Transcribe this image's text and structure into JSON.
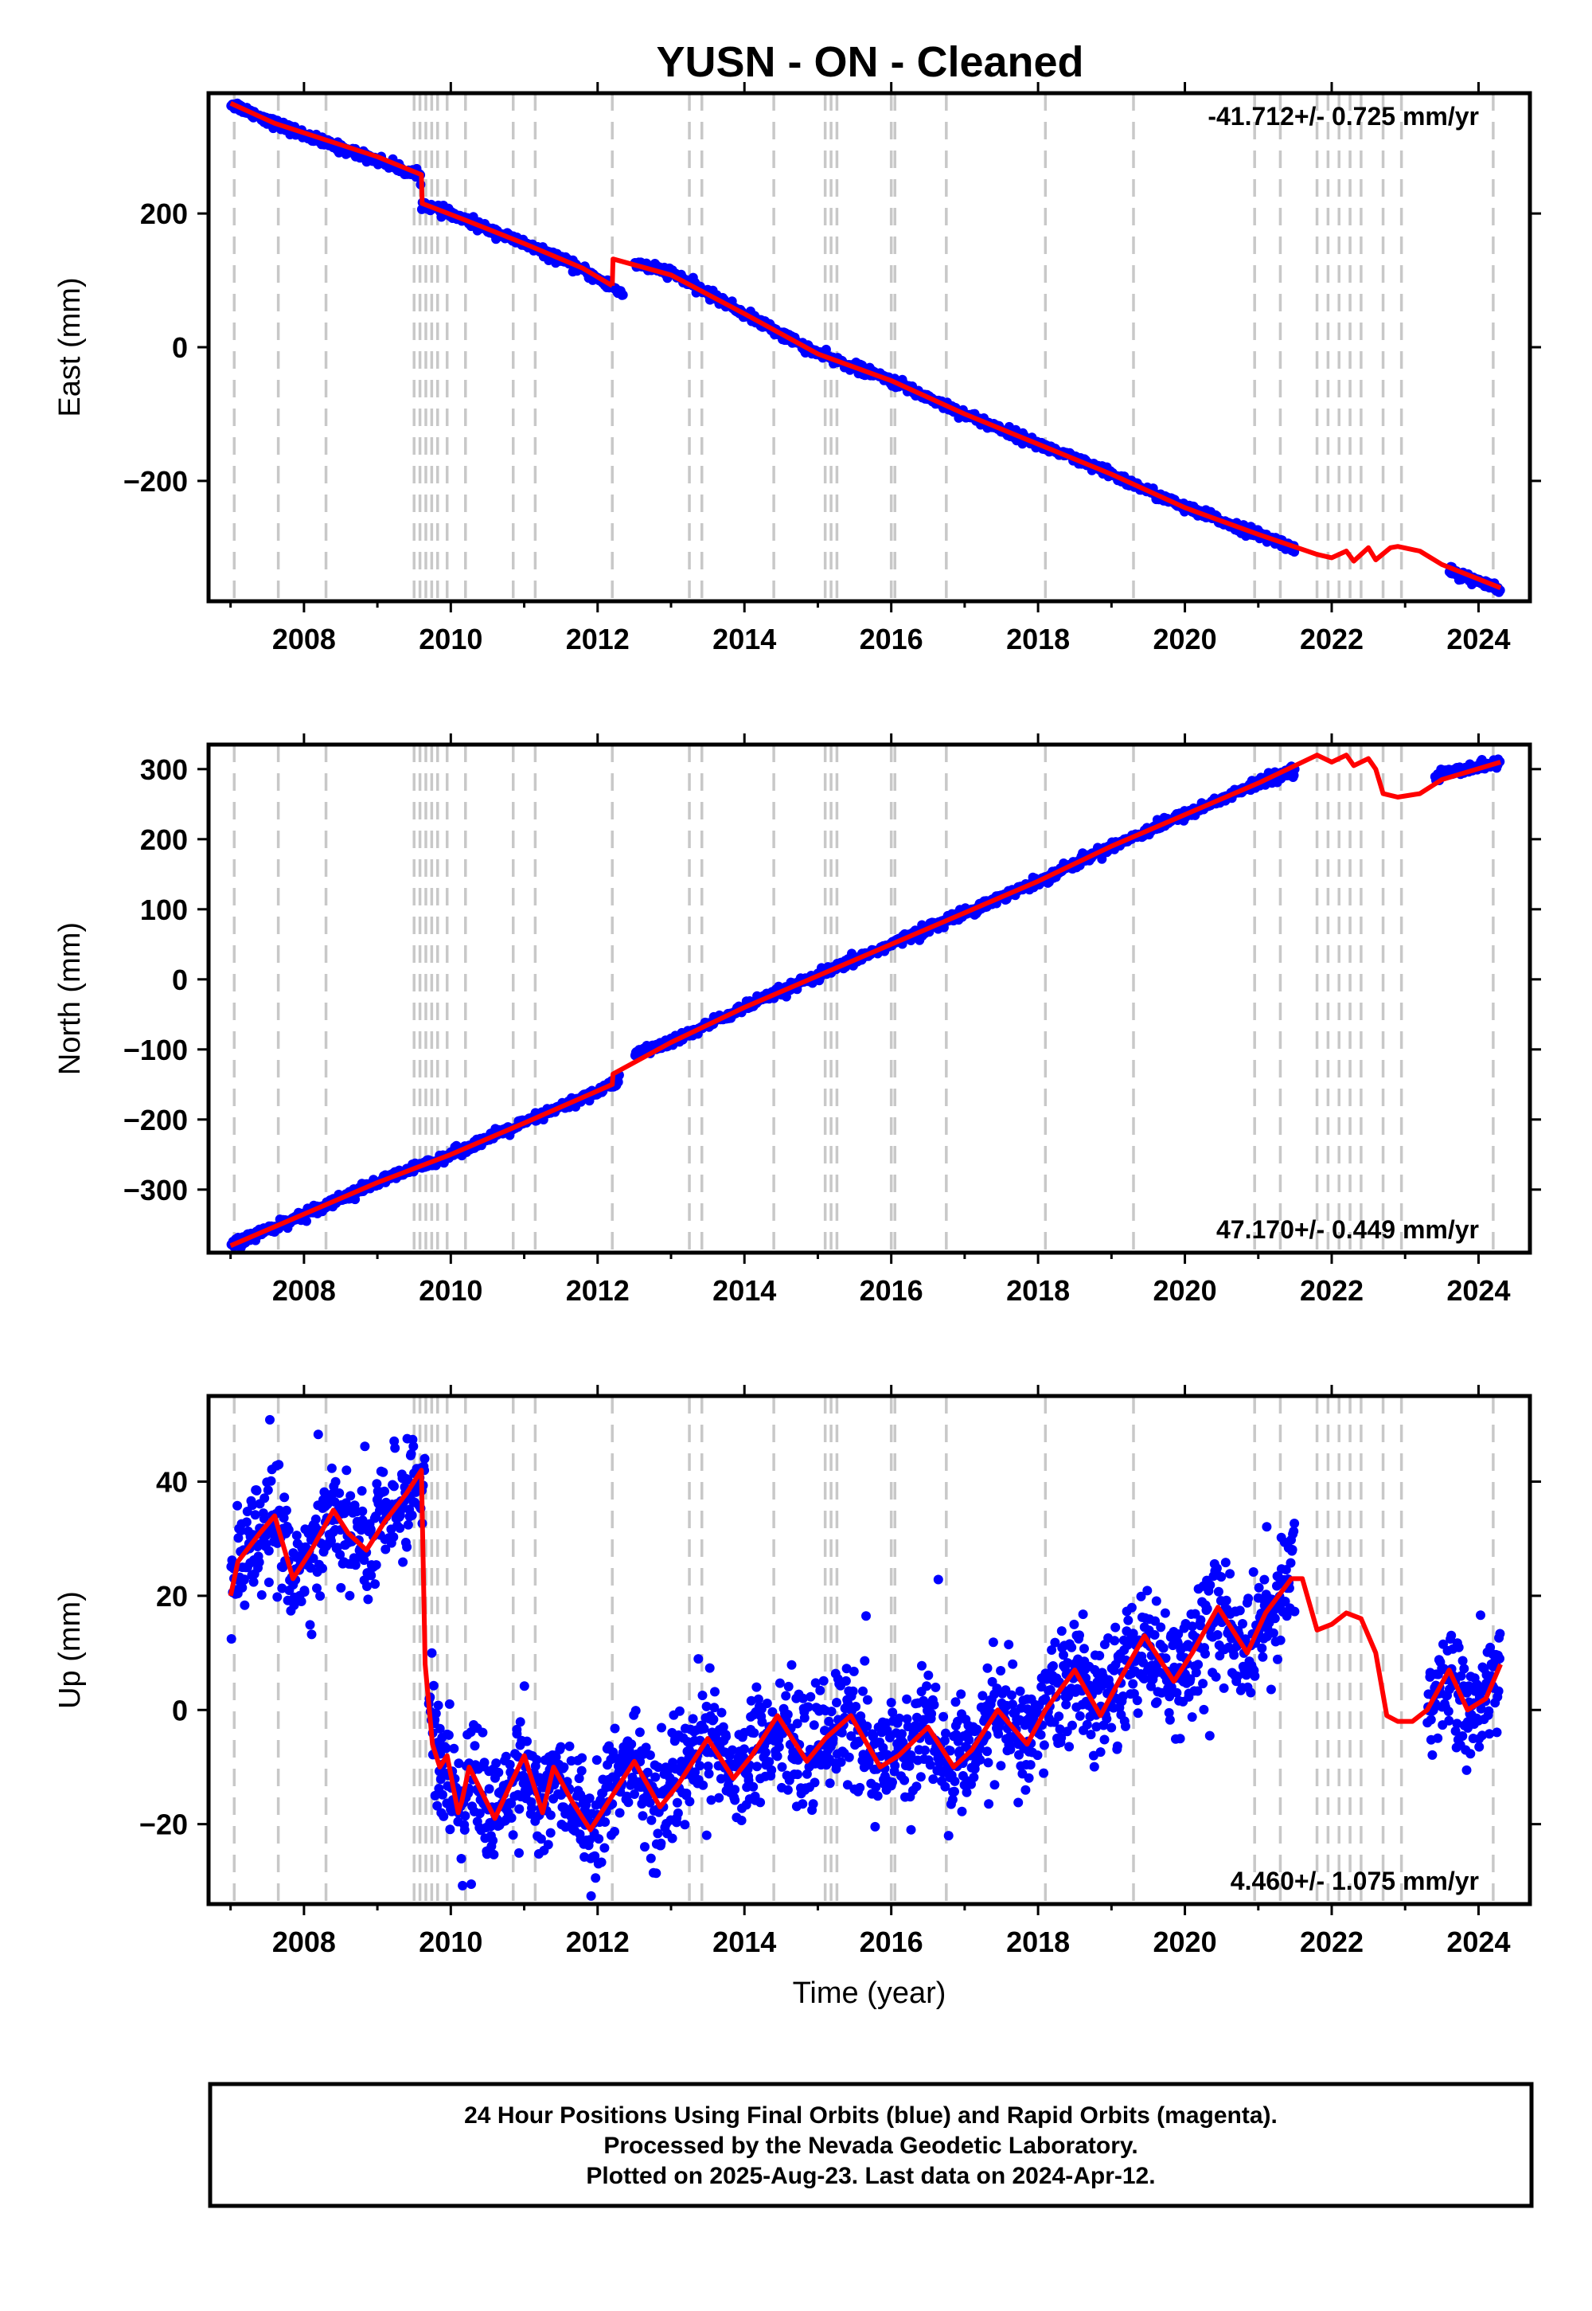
{
  "title": "YUSN  - ON - Cleaned",
  "colors": {
    "data": "#0000ff",
    "model": "#ff0000",
    "event_line": "#c8c8c8",
    "frame": "#000000"
  },
  "chart_data": [
    {
      "type": "scatter",
      "id": "east",
      "ylabel": "East (mm)",
      "xlabel": "",
      "xlim": [
        2006.7,
        2024.7
      ],
      "ylim": [
        -380,
        380
      ],
      "xticks": [
        2008,
        2010,
        2012,
        2014,
        2016,
        2018,
        2020,
        2022,
        2024
      ],
      "yticks": [
        -200,
        0,
        200
      ],
      "rate_text": "-41.712+/- 0.725 mm/yr",
      "rate_position": "top-right",
      "series": [
        {
          "role": "data",
          "segments": [
            {
              "x": [
                2007.0,
                2007.6,
                2008.3,
                2009.0,
                2009.6
              ],
              "y": [
                365,
                335,
                305,
                280,
                255
              ]
            },
            {
              "x": [
                2009.6,
                2010.2,
                2011.0,
                2011.8,
                2012.35
              ],
              "y": [
                215,
                190,
                155,
                115,
                80
              ]
            },
            {
              "x": [
                2012.5,
                2013.0,
                2014.0,
                2015.0,
                2016.0,
                2017.0,
                2018.0,
                2019.0,
                2020.0,
                2021.0,
                2021.5
              ],
              "y": [
                125,
                112,
                50,
                -10,
                -50,
                -100,
                -145,
                -190,
                -240,
                -280,
                -300
              ]
            },
            {
              "x": [
                2023.6,
                2024.0,
                2024.3
              ],
              "y": [
                -335,
                -350,
                -365
              ]
            }
          ]
        },
        {
          "role": "model",
          "segments": [
            {
              "x": [
                2007.0,
                2007.6,
                2008.3,
                2009.0,
                2009.6,
                2009.61,
                2010.2,
                2011.0,
                2011.8,
                2012.2
              ],
              "y": [
                365,
                335,
                310,
                285,
                258,
                215,
                190,
                155,
                118,
                92
              ]
            },
            {
              "x": [
                2012.2,
                2012.21,
                2013.0,
                2014.0,
                2015.0,
                2016.0,
                2017.0,
                2018.0,
                2019.0,
                2020.0,
                2021.0,
                2021.8,
                2022.0,
                2022.2,
                2022.3,
                2022.5,
                2022.6,
                2022.8,
                2022.9,
                2023.2,
                2023.5,
                2024.3
              ],
              "y": [
                92,
                132,
                108,
                50,
                -10,
                -50,
                -100,
                -145,
                -190,
                -240,
                -280,
                -310,
                -315,
                -305,
                -320,
                -300,
                -318,
                -300,
                -298,
                -305,
                -325,
                -360
              ]
            }
          ]
        }
      ]
    },
    {
      "type": "scatter",
      "id": "north",
      "ylabel": "North (mm)",
      "xlabel": "",
      "xlim": [
        2006.7,
        2024.7
      ],
      "ylim": [
        -390,
        335
      ],
      "xticks": [
        2008,
        2010,
        2012,
        2014,
        2016,
        2018,
        2020,
        2022,
        2024
      ],
      "yticks": [
        -300,
        -200,
        -100,
        0,
        100,
        200,
        300
      ],
      "rate_text": "47.170+/- 0.449 mm/yr",
      "rate_position": "bottom-right",
      "series": [
        {
          "role": "data",
          "segments": [
            {
              "x": [
                2007.0,
                2008.0,
                2009.0,
                2010.0,
                2011.0,
                2012.0,
                2012.3
              ],
              "y": [
                -380,
                -335,
                -290,
                -250,
                -205,
                -160,
                -145
              ]
            },
            {
              "x": [
                2012.5,
                2013.0,
                2014.0,
                2015.0,
                2016.0,
                2017.0,
                2018.0,
                2019.0,
                2020.0,
                2021.0,
                2021.5
              ],
              "y": [
                -105,
                -90,
                -40,
                5,
                50,
                95,
                140,
                190,
                235,
                280,
                300
              ]
            },
            {
              "x": [
                2023.4,
                2023.8,
                2024.3
              ],
              "y": [
                290,
                300,
                310
              ]
            }
          ]
        },
        {
          "role": "model",
          "segments": [
            {
              "x": [
                2007.0,
                2008.0,
                2009.0,
                2010.0,
                2011.0,
                2012.2,
                2012.21,
                2013.0,
                2014.0,
                2015.0,
                2016.0,
                2017.0,
                2018.0,
                2019.0,
                2020.0,
                2021.0,
                2021.8,
                2022.0,
                2022.2,
                2022.3,
                2022.5,
                2022.6,
                2022.7,
                2022.9,
                2023.2,
                2023.5,
                2024.3
              ],
              "y": [
                -380,
                -335,
                -290,
                -250,
                -205,
                -150,
                -135,
                -90,
                -40,
                5,
                50,
                95,
                140,
                190,
                235,
                280,
                320,
                310,
                320,
                305,
                315,
                300,
                265,
                260,
                265,
                285,
                310
              ]
            }
          ]
        }
      ]
    },
    {
      "type": "scatter",
      "id": "up",
      "ylabel": "Up (mm)",
      "xlabel": "Time (year)",
      "xlim": [
        2006.7,
        2024.7
      ],
      "ylim": [
        -34,
        55
      ],
      "xticks": [
        2008,
        2010,
        2012,
        2014,
        2016,
        2018,
        2020,
        2022,
        2024
      ],
      "yticks": [
        -20,
        0,
        20,
        40
      ],
      "rate_text": "4.460+/- 1.075 mm/yr",
      "rate_position": "bottom-right",
      "series": [
        {
          "role": "data",
          "segments": [
            {
              "x": [
                2007.0,
                2007.5,
                2008.0,
                2008.5,
                2009.0,
                2009.5,
                2009.65
              ],
              "y": [
                22,
                32,
                25,
                33,
                28,
                42,
                44
              ]
            },
            {
              "x": [
                2009.7,
                2010.0,
                2011.0,
                2012.0,
                2013.0,
                2014.0,
                2015.0,
                2016.0,
                2017.0,
                2018.0,
                2019.0,
                2020.0,
                2021.0,
                2021.5
              ],
              "y": [
                5,
                -12,
                -17,
                -20,
                -13,
                -6,
                -3,
                -8,
                -7,
                0,
                5,
                10,
                15,
                22
              ]
            },
            {
              "x": [
                2023.3,
                2023.6,
                2024.0,
                2024.3
              ],
              "y": [
                0,
                7,
                0,
                6
              ]
            }
          ]
        },
        {
          "role": "model",
          "segments": [
            {
              "x": [
                2007.0,
                2007.1,
                2007.4,
                2007.6,
                2007.85,
                2008.1,
                2008.4,
                2008.6,
                2008.85,
                2009.1,
                2009.4,
                2009.6,
                2009.65,
                2009.75,
                2009.85,
                2009.95,
                2010.1,
                2010.15,
                2010.25,
                2010.6,
                2010.85,
                2011.0,
                2011.25,
                2011.4,
                2011.65,
                2011.9,
                2012.15,
                2012.5,
                2012.85,
                2013.1,
                2013.5,
                2013.85,
                2014.1,
                2014.45,
                2014.85,
                2015.1,
                2015.45,
                2015.85,
                2016.1,
                2016.5,
                2016.85,
                2017.1,
                2017.45,
                2017.85,
                2018.1,
                2018.5,
                2018.85,
                2019.1,
                2019.45,
                2019.85,
                2020.1,
                2020.45,
                2020.85,
                2021.1,
                2021.45,
                2021.6,
                2021.8,
                2022.0,
                2022.2,
                2022.4,
                2022.6,
                2022.75,
                2022.9,
                2023.1,
                2023.3,
                2023.6,
                2023.85,
                2024.1,
                2024.3
              ],
              "y": [
                20,
                26,
                31,
                34,
                23,
                28,
                35,
                31,
                28,
                33,
                38,
                42,
                8,
                -6,
                -10,
                -8,
                -18,
                -16,
                -10,
                -19,
                -12,
                -8,
                -18,
                -10,
                -16,
                -21,
                -16,
                -9,
                -17,
                -13,
                -5,
                -12,
                -8,
                -1,
                -9,
                -5,
                -1,
                -10,
                -8,
                -3,
                -10,
                -7,
                0,
                -6,
                0,
                7,
                -1,
                5,
                13,
                5,
                10,
                18,
                10,
                17,
                23,
                23,
                14,
                15,
                17,
                16,
                10,
                -1,
                -2,
                -2,
                0,
                7,
                0,
                2,
                8
              ]
            }
          ]
        }
      ]
    }
  ],
  "event_years": [
    2007.05,
    2007.65,
    2008.3,
    2009.5,
    2009.58,
    2009.66,
    2009.74,
    2009.82,
    2009.95,
    2010.2,
    2010.85,
    2011.15,
    2012.2,
    2013.25,
    2013.42,
    2014.4,
    2015.1,
    2015.18,
    2015.26,
    2016.0,
    2016.05,
    2016.75,
    2018.1,
    2019.3,
    2020.95,
    2021.3,
    2021.8,
    2021.95,
    2022.1,
    2022.25,
    2022.4,
    2022.7,
    2022.95,
    2024.2
  ],
  "footer": {
    "line1": "24 Hour Positions Using Final Orbits (blue) and Rapid Orbits (magenta).",
    "line2": "Processed by the Nevada Geodetic Laboratory.",
    "line3": "Plotted on 2025-Aug-23. Last data on 2024-Apr-12."
  }
}
